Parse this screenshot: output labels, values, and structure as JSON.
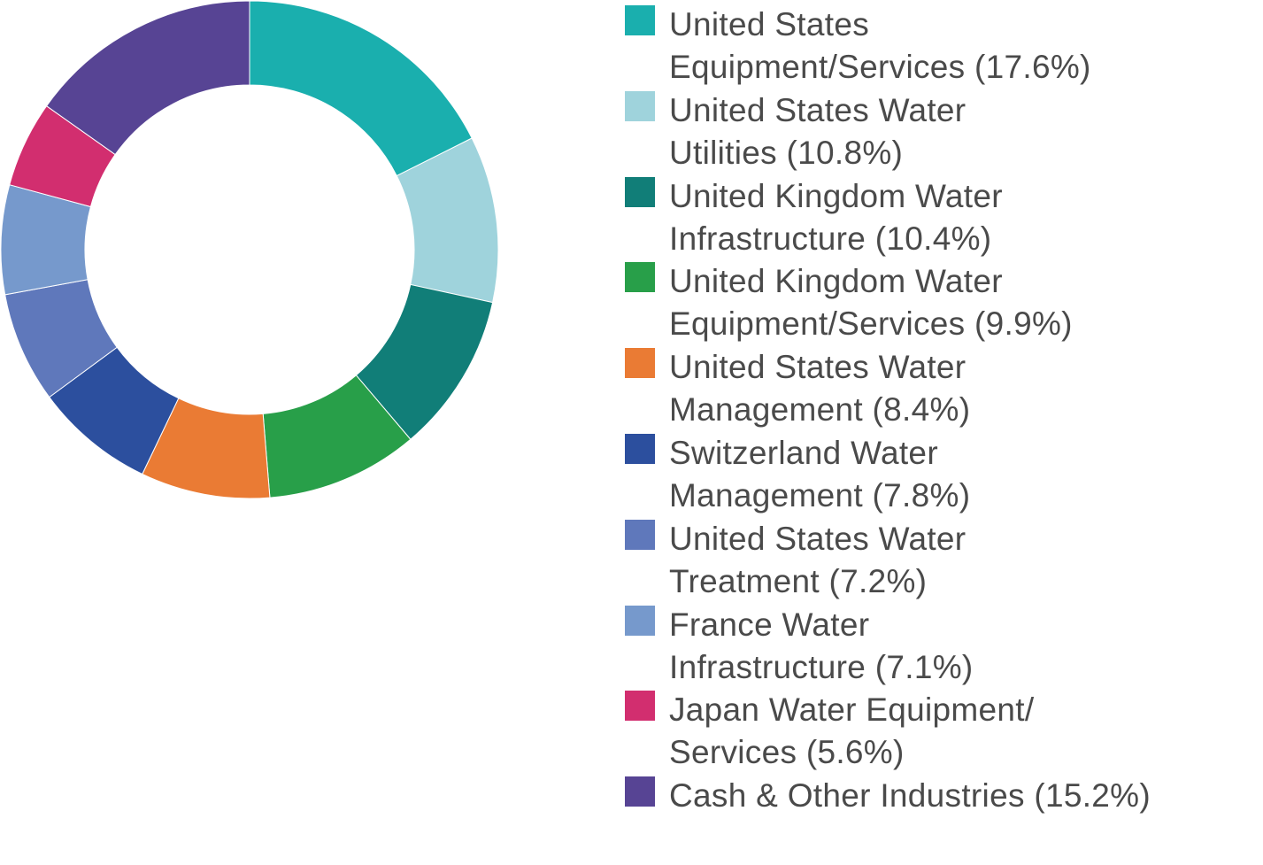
{
  "chart_data": {
    "type": "pie",
    "donut": true,
    "title": "",
    "slices": [
      {
        "label": "United States Equipment/Services (17.6%)",
        "value": 17.6,
        "color": "#1aafae",
        "line1": "United States",
        "line2": "Equipment/Services (17.6%)"
      },
      {
        "label": "United States Water Utilities (10.8%)",
        "value": 10.8,
        "color": "#9fd3dc",
        "line1": "United States Water",
        "line2": "Utilities (10.8%)"
      },
      {
        "label": "United Kingdom Water Infrastructure (10.4%)",
        "value": 10.4,
        "color": "#117e78",
        "line1": "United Kingdom Water",
        "line2": "Infrastructure (10.4%)"
      },
      {
        "label": "United Kingdom Water Equipment/Services (9.9%)",
        "value": 9.9,
        "color": "#289f49",
        "line1": "United Kingdom Water",
        "line2": "Equipment/Services (9.9%)"
      },
      {
        "label": "United States Water Management (8.4%)",
        "value": 8.4,
        "color": "#ea7b34",
        "line1": "United States Water",
        "line2": "Management (8.4%)"
      },
      {
        "label": "Switzerland Water Management (7.8%)",
        "value": 7.8,
        "color": "#2c4f9e",
        "line1": "Switzerland Water",
        "line2": "Management (7.8%)"
      },
      {
        "label": "United States Water Treatment (7.2%)",
        "value": 7.2,
        "color": "#5f78bb",
        "line1": "United States Water",
        "line2": "Treatment (7.2%)"
      },
      {
        "label": "France Water Infrastructure (7.1%)",
        "value": 7.1,
        "color": "#7699cc",
        "line1": "France Water",
        "line2": "Infrastructure (7.1%)"
      },
      {
        "label": "Japan Water Equipment/Services (5.6%)",
        "value": 5.6,
        "color": "#d22e6f",
        "line1": "Japan Water Equipment/",
        "line2": "Services (5.6%)"
      },
      {
        "label": "Cash & Other Industries (15.2%)",
        "value": 15.2,
        "color": "#574494",
        "line1": "Cash & Other Industries (15.2%)",
        "line2": ""
      }
    ],
    "legend_position": "right"
  }
}
